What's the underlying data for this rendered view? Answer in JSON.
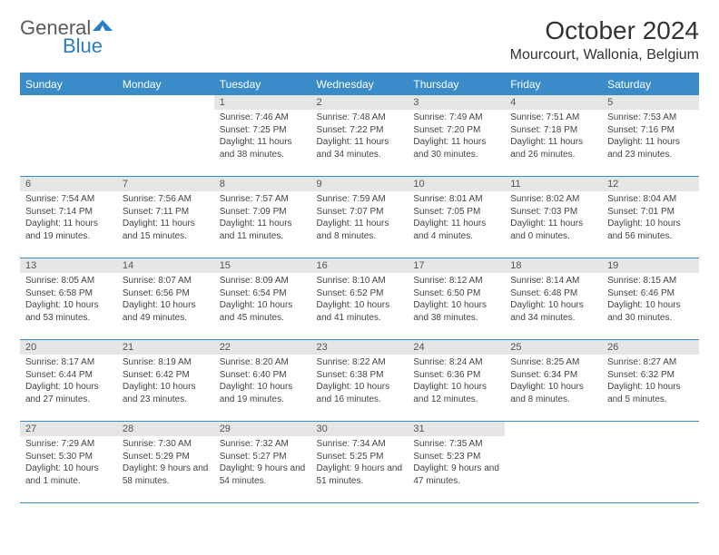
{
  "brand": {
    "word1": "General",
    "word2": "Blue",
    "chevron_color": "#2a7fc4",
    "text_gray": "#5a5a5a"
  },
  "title": "October 2024",
  "location": "Mourcourt, Wallonia, Belgium",
  "colors": {
    "header_bg": "#3a8cc9",
    "header_text": "#ffffff",
    "daynum_bg": "#e6e6e6",
    "daynum_text": "#555555",
    "body_text": "#444444",
    "rule": "#3a8cc9",
    "page_bg": "#ffffff"
  },
  "fonts": {
    "title_size": 28,
    "location_size": 16,
    "header_size": 12,
    "daynum_size": 11,
    "cell_size": 10
  },
  "day_labels": [
    "Sunday",
    "Monday",
    "Tuesday",
    "Wednesday",
    "Thursday",
    "Friday",
    "Saturday"
  ],
  "weeks": [
    [
      null,
      null,
      {
        "n": "1",
        "sr": "7:46 AM",
        "ss": "7:25 PM",
        "dl": "11 hours and 38 minutes."
      },
      {
        "n": "2",
        "sr": "7:48 AM",
        "ss": "7:22 PM",
        "dl": "11 hours and 34 minutes."
      },
      {
        "n": "3",
        "sr": "7:49 AM",
        "ss": "7:20 PM",
        "dl": "11 hours and 30 minutes."
      },
      {
        "n": "4",
        "sr": "7:51 AM",
        "ss": "7:18 PM",
        "dl": "11 hours and 26 minutes."
      },
      {
        "n": "5",
        "sr": "7:53 AM",
        "ss": "7:16 PM",
        "dl": "11 hours and 23 minutes."
      }
    ],
    [
      {
        "n": "6",
        "sr": "7:54 AM",
        "ss": "7:14 PM",
        "dl": "11 hours and 19 minutes."
      },
      {
        "n": "7",
        "sr": "7:56 AM",
        "ss": "7:11 PM",
        "dl": "11 hours and 15 minutes."
      },
      {
        "n": "8",
        "sr": "7:57 AM",
        "ss": "7:09 PM",
        "dl": "11 hours and 11 minutes."
      },
      {
        "n": "9",
        "sr": "7:59 AM",
        "ss": "7:07 PM",
        "dl": "11 hours and 8 minutes."
      },
      {
        "n": "10",
        "sr": "8:01 AM",
        "ss": "7:05 PM",
        "dl": "11 hours and 4 minutes."
      },
      {
        "n": "11",
        "sr": "8:02 AM",
        "ss": "7:03 PM",
        "dl": "11 hours and 0 minutes."
      },
      {
        "n": "12",
        "sr": "8:04 AM",
        "ss": "7:01 PM",
        "dl": "10 hours and 56 minutes."
      }
    ],
    [
      {
        "n": "13",
        "sr": "8:05 AM",
        "ss": "6:58 PM",
        "dl": "10 hours and 53 minutes."
      },
      {
        "n": "14",
        "sr": "8:07 AM",
        "ss": "6:56 PM",
        "dl": "10 hours and 49 minutes."
      },
      {
        "n": "15",
        "sr": "8:09 AM",
        "ss": "6:54 PM",
        "dl": "10 hours and 45 minutes."
      },
      {
        "n": "16",
        "sr": "8:10 AM",
        "ss": "6:52 PM",
        "dl": "10 hours and 41 minutes."
      },
      {
        "n": "17",
        "sr": "8:12 AM",
        "ss": "6:50 PM",
        "dl": "10 hours and 38 minutes."
      },
      {
        "n": "18",
        "sr": "8:14 AM",
        "ss": "6:48 PM",
        "dl": "10 hours and 34 minutes."
      },
      {
        "n": "19",
        "sr": "8:15 AM",
        "ss": "6:46 PM",
        "dl": "10 hours and 30 minutes."
      }
    ],
    [
      {
        "n": "20",
        "sr": "8:17 AM",
        "ss": "6:44 PM",
        "dl": "10 hours and 27 minutes."
      },
      {
        "n": "21",
        "sr": "8:19 AM",
        "ss": "6:42 PM",
        "dl": "10 hours and 23 minutes."
      },
      {
        "n": "22",
        "sr": "8:20 AM",
        "ss": "6:40 PM",
        "dl": "10 hours and 19 minutes."
      },
      {
        "n": "23",
        "sr": "8:22 AM",
        "ss": "6:38 PM",
        "dl": "10 hours and 16 minutes."
      },
      {
        "n": "24",
        "sr": "8:24 AM",
        "ss": "6:36 PM",
        "dl": "10 hours and 12 minutes."
      },
      {
        "n": "25",
        "sr": "8:25 AM",
        "ss": "6:34 PM",
        "dl": "10 hours and 8 minutes."
      },
      {
        "n": "26",
        "sr": "8:27 AM",
        "ss": "6:32 PM",
        "dl": "10 hours and 5 minutes."
      }
    ],
    [
      {
        "n": "27",
        "sr": "7:29 AM",
        "ss": "5:30 PM",
        "dl": "10 hours and 1 minute."
      },
      {
        "n": "28",
        "sr": "7:30 AM",
        "ss": "5:29 PM",
        "dl": "9 hours and 58 minutes."
      },
      {
        "n": "29",
        "sr": "7:32 AM",
        "ss": "5:27 PM",
        "dl": "9 hours and 54 minutes."
      },
      {
        "n": "30",
        "sr": "7:34 AM",
        "ss": "5:25 PM",
        "dl": "9 hours and 51 minutes."
      },
      {
        "n": "31",
        "sr": "7:35 AM",
        "ss": "5:23 PM",
        "dl": "9 hours and 47 minutes."
      },
      null,
      null
    ]
  ],
  "labels": {
    "sunrise": "Sunrise:",
    "sunset": "Sunset:",
    "daylight": "Daylight:"
  }
}
